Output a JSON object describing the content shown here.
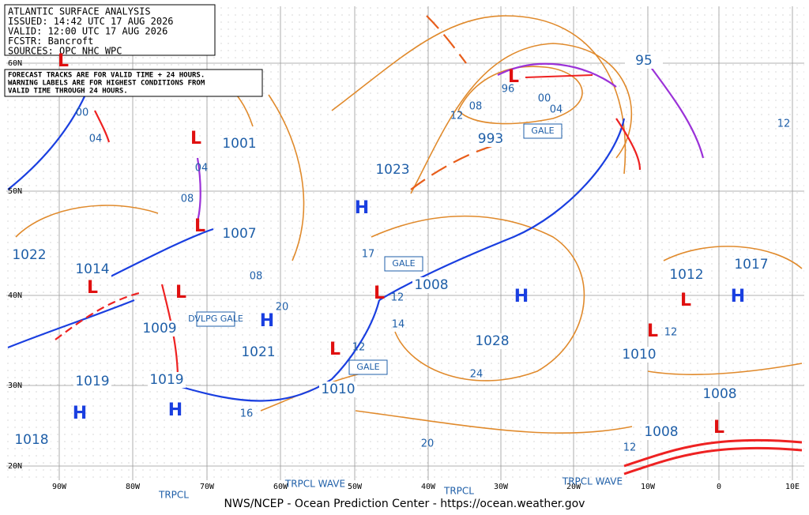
{
  "header": {
    "lines": [
      "ATLANTIC SURFACE ANALYSIS",
      "ISSUED: 14:42 UTC 17 AUG 2026",
      "VALID: 12:00 UTC 17 AUG 2026",
      "FCSTR:  Bancroft",
      "SOURCES: OPC NHC WPC"
    ]
  },
  "notice": {
    "lines": [
      "FORECAST TRACKS ARE FOR VALID TIME + 24 HOURS.",
      "WARNING LABELS ARE FOR HIGHEST CONDITIONS FROM",
      "VALID TIME THROUGH 24 HOURS."
    ]
  },
  "lat_labels": [
    "60N",
    "50N",
    "40N",
    "30N",
    "20N"
  ],
  "lon_labels": [
    "90W",
    "80W",
    "70W",
    "60W",
    "50W",
    "40W",
    "30W",
    "20W",
    "10W",
    "0",
    "10E"
  ],
  "pressure_labels": [
    "1001",
    "1007",
    "1022",
    "1014",
    "1009",
    "1021",
    "1019",
    "1019",
    "1018",
    "993",
    "1023",
    "1008",
    "1028",
    "1010",
    "1012",
    "1017",
    "1010",
    "1008",
    "1008",
    "95"
  ],
  "isobar_labels": [
    "00",
    "04",
    "04",
    "08",
    "08",
    "20",
    "17",
    "14",
    "12",
    "12",
    "12",
    "16",
    "24",
    "20",
    "12",
    "08",
    "00",
    "04",
    "96",
    "12",
    "12"
  ],
  "systems": [
    "L",
    "L",
    "L",
    "L",
    "L",
    "L",
    "L",
    "L",
    "L",
    "L",
    "L",
    "H",
    "H",
    "H",
    "H",
    "H",
    "H"
  ],
  "warnings": [
    "GALE",
    "GALE",
    "GALE",
    "DVLPG GALE"
  ],
  "tropical_labels": [
    "TRPCL",
    "TRPCL WAVE",
    "TRPCL",
    "TRPCL WAVE"
  ],
  "footer": "NWS/NCEP - Ocean Prediction Center - https://ocean.weather.gov"
}
